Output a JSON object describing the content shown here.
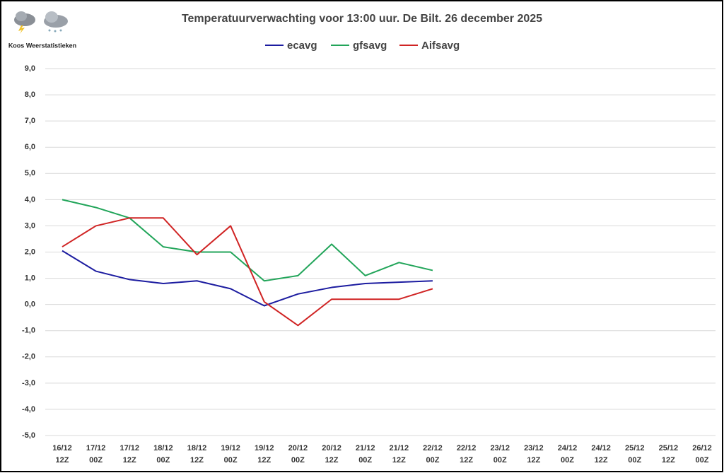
{
  "chart_data": {
    "type": "line",
    "title": "Temperatuurverwachting voor 13:00 uur. De Bilt. 26 december 2025",
    "source": "Koos Weerstatistieken",
    "categories": [
      "16/12\n12Z",
      "17/12\n00Z",
      "17/12\n12Z",
      "18/12\n00Z",
      "18/12\n12Z",
      "19/12\n00Z",
      "19/12\n12Z",
      "20/12\n00Z",
      "20/12\n12Z",
      "21/12\n00Z",
      "21/12\n12Z",
      "22/12\n00Z",
      "22/12\n12Z",
      "23/12\n00Z",
      "23/12\n12Z",
      "24/12\n00Z",
      "24/12\n12Z",
      "25/12\n00Z",
      "25/12\n12Z",
      "26/12\n00Z"
    ],
    "series": [
      {
        "name": "ecavg",
        "color": "#1c1ca0",
        "values": [
          2.05,
          1.27,
          0.95,
          0.8,
          0.9,
          0.6,
          -0.05,
          0.4,
          0.65,
          0.8,
          0.85,
          0.9,
          null,
          null,
          null,
          null,
          null,
          null,
          null,
          null
        ]
      },
      {
        "name": "gfsavg",
        "color": "#22a55a",
        "values": [
          4.0,
          3.7,
          3.3,
          2.2,
          2.0,
          2.0,
          0.9,
          1.1,
          2.3,
          1.1,
          1.6,
          1.3,
          null,
          null,
          null,
          null,
          null,
          null,
          null,
          null
        ]
      },
      {
        "name": "Aifsavg",
        "color": "#d02424",
        "values": [
          2.2,
          3.0,
          3.3,
          3.3,
          1.9,
          3.0,
          0.1,
          -0.8,
          0.2,
          0.2,
          0.2,
          0.6,
          null,
          null,
          null,
          null,
          null,
          null,
          null,
          null
        ]
      }
    ],
    "ylim": [
      -5,
      9
    ],
    "yticks": [
      {
        "value": -5,
        "label": "-5,0"
      },
      {
        "value": -4,
        "label": "-4,0"
      },
      {
        "value": -3,
        "label": "-3,0"
      },
      {
        "value": -2,
        "label": "-2,0"
      },
      {
        "value": -1,
        "label": "-1,0"
      },
      {
        "value": 0,
        "label": "0,0"
      },
      {
        "value": 1,
        "label": "1,0"
      },
      {
        "value": 2,
        "label": "2,0"
      },
      {
        "value": 3,
        "label": "3,0"
      },
      {
        "value": 4,
        "label": "4,0"
      },
      {
        "value": 5,
        "label": "5,0"
      },
      {
        "value": 6,
        "label": "6,0"
      },
      {
        "value": 7,
        "label": "7,0"
      },
      {
        "value": 8,
        "label": "8,0"
      },
      {
        "value": 9,
        "label": "9,0"
      }
    ],
    "grid": true,
    "legend": "top"
  }
}
